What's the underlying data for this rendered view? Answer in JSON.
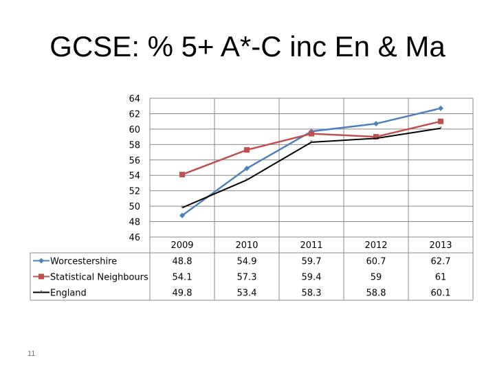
{
  "slide": {
    "title": "GCSE: % 5+ A*-C inc En & Ma",
    "page_number": "11"
  },
  "chart_data": {
    "type": "line",
    "title": "GCSE: % 5+ A*-C inc En & Ma",
    "categories": [
      "2009",
      "2010",
      "2011",
      "2012",
      "2013"
    ],
    "ylim": [
      46,
      64
    ],
    "yticks": [
      "64",
      "62",
      "60",
      "58",
      "56",
      "54",
      "52",
      "50",
      "48",
      "46"
    ],
    "grid": true,
    "legend": "table-left",
    "series": [
      {
        "name": "Worcestershire",
        "values": [
          48.8,
          54.9,
          59.7,
          60.7,
          62.7
        ],
        "labels": [
          "48.8",
          "54.9",
          "59.7",
          "60.7",
          "62.7"
        ],
        "color": "#4F81BD",
        "marker": "diamond"
      },
      {
        "name": "Statistical Neighbours",
        "values": [
          54.1,
          57.3,
          59.4,
          59,
          61
        ],
        "labels": [
          "54.1",
          "57.3",
          "59.4",
          "59",
          "61"
        ],
        "color": "#C0504D",
        "marker": "square"
      },
      {
        "name": "England",
        "values": [
          49.8,
          53.4,
          58.3,
          58.8,
          60.1
        ],
        "labels": [
          "49.8",
          "53.4",
          "58.3",
          "58.8",
          "60.1"
        ],
        "color": "#000000",
        "marker": "star"
      }
    ]
  }
}
